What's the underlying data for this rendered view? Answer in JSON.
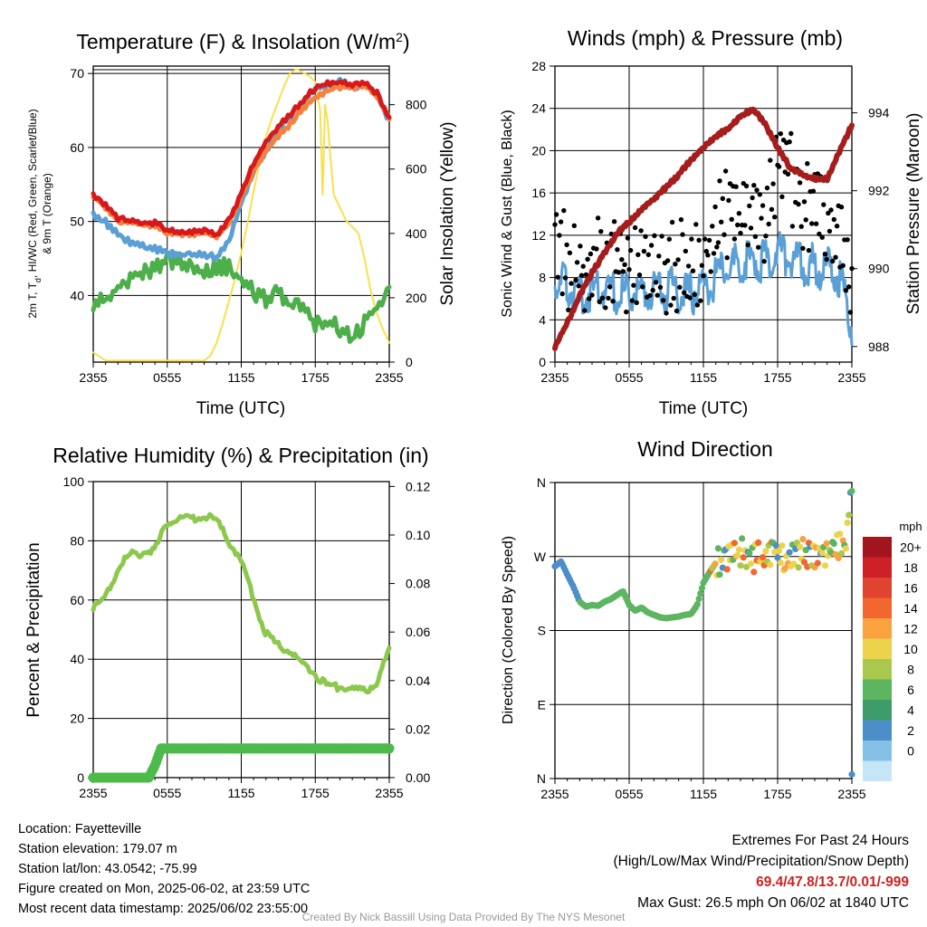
{
  "colors": {
    "red": "#d7191c",
    "orange": "#f4813c",
    "green": "#4daf4a",
    "blue": "#5aa0d6",
    "yellow": "#f9e04b",
    "maroon": "#a51d1d",
    "black": "#000000",
    "rh": "#8cc84b",
    "precip": "#4dbb4a",
    "extremes": "#cc2222",
    "credit": "#999999"
  },
  "chart_data": [
    {
      "type": "line",
      "title": "Temperature (F) & Insolation (W/m",
      "title_sup": "2",
      "title_end": ")",
      "xlabel": "Time (UTC)",
      "ylabel_line1": "2m T, T",
      "ylabel_sub": "d",
      "ylabel_line1_end": ", HI/WC (Red, Green, Scarlet/Blue)",
      "ylabel_line2": "& 9m T (Orange)",
      "ylabel_right": "Solar Insolation (Yellow)",
      "x_ticks": [
        "2355",
        "0555",
        "1155",
        "1755",
        "2355"
      ],
      "y_ticks": [
        "40",
        "50",
        "60",
        "70"
      ],
      "y_right_ticks": [
        "0",
        "200",
        "400",
        "600",
        "800"
      ],
      "ylim": [
        31,
        71
      ],
      "y_right_lim": [
        0,
        920
      ],
      "grid": true,
      "series": [
        {
          "key": "t2m",
          "color": "red",
          "x": [
            0,
            1,
            2,
            3,
            4,
            5,
            6,
            7,
            8,
            9,
            10,
            11,
            12,
            13,
            14,
            15,
            16,
            17,
            18,
            19,
            20,
            21,
            22,
            23,
            24
          ],
          "y": [
            53.7,
            52.2,
            50.4,
            50.1,
            49.9,
            49.8,
            48.9,
            48.6,
            48.6,
            48.7,
            48.2,
            50.2,
            53.8,
            57.8,
            60.7,
            62.8,
            64.5,
            66.4,
            68.1,
            68.6,
            68.9,
            68.4,
            68.7,
            67.3,
            63.8
          ]
        },
        {
          "key": "t9m",
          "color": "orange",
          "x": [
            0,
            1,
            2,
            3,
            4,
            5,
            6,
            7,
            8,
            9,
            10,
            11,
            12,
            13,
            14,
            15,
            16,
            17,
            18,
            19,
            20,
            21,
            22,
            23,
            24
          ],
          "y": [
            53.4,
            51.9,
            50.1,
            49.8,
            49.6,
            49.5,
            48.6,
            48.3,
            48.3,
            48.4,
            48.0,
            49.7,
            53.2,
            56.9,
            59.5,
            61.6,
            63.2,
            65.3,
            66.8,
            67.6,
            68.2,
            68.0,
            68.3,
            67.0,
            63.9
          ]
        },
        {
          "key": "dewpoint",
          "color": "green",
          "x": [
            0,
            1,
            2,
            3,
            4,
            5,
            6,
            7,
            8,
            9,
            10,
            11,
            12,
            13,
            14,
            15,
            16,
            17,
            18,
            19,
            20,
            21,
            22,
            23,
            24
          ],
          "y": [
            38.9,
            39.5,
            41.2,
            42.4,
            43.0,
            43.5,
            44.8,
            44.5,
            44.0,
            43.0,
            43.6,
            44.0,
            42.0,
            40.5,
            39.5,
            40.5,
            38.5,
            38.8,
            36.0,
            36.2,
            35.6,
            34.0,
            36.5,
            38.5,
            41.2
          ]
        },
        {
          "key": "hiwc",
          "color": "blue",
          "x": [
            0,
            1,
            2,
            3,
            4,
            5,
            6,
            7,
            8,
            9,
            10,
            11,
            12,
            13,
            14,
            15,
            16,
            17,
            18,
            19,
            20,
            21,
            22,
            23,
            24
          ],
          "y": [
            50.8,
            49.9,
            48.3,
            47.2,
            46.6,
            46.4,
            45.6,
            45.4,
            45.6,
            45.5,
            45.0,
            47.5,
            52.5,
            56.8,
            59.6,
            62.2,
            64.4,
            66.2,
            67.8,
            68.4,
            68.8,
            68.3,
            68.6,
            67.1,
            63.6
          ]
        },
        {
          "key": "insolation",
          "color": "yellow",
          "axis": "right",
          "x": [
            0,
            1,
            2,
            3,
            4,
            5,
            6,
            7,
            8,
            9,
            9.5,
            10,
            10.5,
            11,
            11.5,
            12,
            12.5,
            13,
            13.5,
            14,
            14.5,
            15,
            15.5,
            16,
            16.5,
            17,
            17.5,
            18,
            18.4,
            18.6,
            18.8,
            19,
            19.2,
            19.5,
            20,
            20.5,
            21,
            21.5,
            22,
            22.5,
            23,
            23.5,
            24
          ],
          "y": [
            30,
            5,
            5,
            5,
            5,
            5,
            5,
            5,
            5,
            5,
            20,
            60,
            120,
            190,
            260,
            340,
            430,
            530,
            620,
            700,
            760,
            810,
            860,
            900,
            910,
            900,
            890,
            870,
            780,
            520,
            800,
            750,
            650,
            520,
            480,
            440,
            420,
            400,
            320,
            220,
            150,
            100,
            60
          ]
        }
      ]
    },
    {
      "type": "line",
      "title": "Winds (mph) & Pressure (mb)",
      "xlabel": "Time (UTC)",
      "ylabel": "Sonic Wind & Gust (Blue, Black)",
      "ylabel_right": "Station Pressure (Maroon)",
      "x_ticks": [
        "2355",
        "0555",
        "1155",
        "1755",
        "2355"
      ],
      "y_ticks": [
        "0",
        "4",
        "8",
        "12",
        "16",
        "20",
        "24",
        "28"
      ],
      "y_right_ticks": [
        "988",
        "990",
        "992",
        "994"
      ],
      "ylim": [
        0,
        28
      ],
      "y_right_lim": [
        987.6,
        995.2
      ],
      "grid": true,
      "series": [
        {
          "key": "wind",
          "color": "blue",
          "x": [
            0,
            1,
            2,
            3,
            4,
            5,
            6,
            7,
            8,
            9,
            10,
            11,
            12,
            13,
            14,
            15,
            16,
            17,
            18,
            19,
            20,
            21,
            22,
            23,
            24
          ],
          "y": [
            7.5,
            7.2,
            6.5,
            6.8,
            7.0,
            6.5,
            6.8,
            6.6,
            6.5,
            7.0,
            6.8,
            6.5,
            7.2,
            8.0,
            9.0,
            9.2,
            9.8,
            9.5,
            10.5,
            10.0,
            9.0,
            9.2,
            8.8,
            8.0,
            3.5
          ]
        },
        {
          "key": "gust",
          "color": "black",
          "x": [
            0,
            1,
            2,
            3,
            4,
            5,
            6,
            7,
            8,
            9,
            10,
            11,
            12,
            13,
            14,
            15,
            16,
            17,
            18,
            19,
            20,
            21,
            22,
            23,
            24
          ],
          "y": [
            14.5,
            9.8,
            9.5,
            10.5,
            10.2,
            10.0,
            10.0,
            9.8,
            9.5,
            10.2,
            10.5,
            10.0,
            9.5,
            15.0,
            15.5,
            15.0,
            16.0,
            14.5,
            20.0,
            19.0,
            16.0,
            15.0,
            14.5,
            13.0,
            7.0
          ]
        },
        {
          "key": "pressure",
          "color": "maroon",
          "axis": "right",
          "x": [
            0,
            1,
            2,
            3,
            4,
            5,
            6,
            7,
            8,
            9,
            10,
            11,
            12,
            13,
            14,
            15,
            16,
            17,
            18,
            19,
            20,
            21,
            22,
            23,
            24
          ],
          "y": [
            988.0,
            988.6,
            989.3,
            989.9,
            990.4,
            990.9,
            991.2,
            991.5,
            991.8,
            992.1,
            992.4,
            992.8,
            993.1,
            993.4,
            993.6,
            993.9,
            994.1,
            993.7,
            993.1,
            992.6,
            992.4,
            992.3,
            992.3,
            993.0,
            993.7
          ]
        }
      ]
    },
    {
      "type": "line",
      "title": "Relative Humidity (%) & Precipitation (in)",
      "ylabel": "Percent & Precipitation",
      "x_ticks": [
        "2355",
        "0555",
        "1155",
        "1755",
        "2355"
      ],
      "y_ticks": [
        "0",
        "20",
        "40",
        "60",
        "80",
        "100"
      ],
      "y_right_ticks": [
        "0.00",
        "0.02",
        "0.04",
        "0.06",
        "0.08",
        "0.10",
        "0.12"
      ],
      "ylim": [
        0,
        100
      ],
      "y_right_lim": [
        0,
        0.122
      ],
      "grid": true,
      "series": [
        {
          "key": "rh",
          "color": "rh",
          "x": [
            0,
            1,
            2,
            3,
            4,
            5,
            6,
            7,
            8,
            9,
            10,
            11,
            12,
            13,
            14,
            15,
            16,
            17,
            18,
            19,
            20,
            21,
            22,
            23,
            24
          ],
          "y": [
            57.5,
            60.5,
            71.0,
            75.5,
            76.0,
            77.0,
            86.0,
            88.0,
            87.5,
            88.5,
            86.5,
            80.0,
            73.0,
            60.5,
            48.5,
            44.5,
            42.5,
            38.0,
            35.0,
            30.5,
            30.5,
            30.0,
            29.0,
            32.5,
            43.0
          ]
        },
        {
          "key": "precip",
          "color": "precip",
          "axis": "right",
          "x": [
            0,
            1,
            2,
            3,
            4,
            4.5,
            5,
            5.5,
            6,
            9,
            12,
            15,
            18,
            21,
            24
          ],
          "y": [
            0,
            0,
            0,
            0,
            0,
            0,
            0.005,
            0.012,
            0.012,
            0.012,
            0.012,
            0.012,
            0.012,
            0.012,
            0.012
          ]
        }
      ]
    },
    {
      "type": "scatter",
      "title": "Wind Direction",
      "ylabel": "Direction (Colored By Speed)",
      "x_ticks": [
        "2355",
        "0555",
        "1155",
        "1755",
        "2355"
      ],
      "y_ticks": [
        "N",
        "E",
        "S",
        "W",
        "N"
      ],
      "ylim": [
        0,
        360
      ],
      "grid": true,
      "legend_title": "mph",
      "legend_labels": [
        "20+",
        "18",
        "16",
        "14",
        "12",
        "10",
        "8",
        "6",
        "4",
        "2",
        "0"
      ],
      "legend_colors": [
        "#a1151c",
        "#cd2027",
        "#e04431",
        "#f1672f",
        "#f9a23f",
        "#ecd34c",
        "#a8c94d",
        "#5db562",
        "#3e9c6b",
        "#4b8ec8",
        "#85c0e6",
        "#c5e6f7"
      ],
      "x": [
        0,
        0.5,
        1,
        1.5,
        2,
        2.5,
        3,
        3.5,
        4,
        4.5,
        5,
        5.5,
        6,
        6.5,
        7,
        7.5,
        8,
        8.5,
        9,
        9.5,
        10,
        10.5,
        11,
        11.5,
        12,
        12.5,
        13,
        13.5,
        14,
        14.5,
        15,
        15.5,
        16,
        16.5,
        17,
        17.5,
        18,
        18.5,
        19,
        19.5,
        20,
        20.5,
        21,
        21.5,
        22,
        22.5,
        23,
        23.5,
        24
      ],
      "y": [
        258,
        264,
        248,
        233,
        215,
        209,
        211,
        210,
        215,
        218,
        223,
        228,
        211,
        204,
        208,
        202,
        199,
        196,
        195,
        196,
        197,
        199,
        200,
        211,
        238,
        251,
        262,
        265,
        273,
        278,
        276,
        270,
        268,
        270,
        268,
        280,
        278,
        266,
        263,
        272,
        276,
        272,
        268,
        278,
        270,
        282,
        286,
        290,
        350
      ]
    }
  ],
  "footer": {
    "location": "Location: Fayetteville",
    "elevation": "Station elevation: 179.07 m",
    "latlon": "Station lat/lon: 43.0542; -75.99",
    "created": "Figure created on Mon, 2025-06-02, at 23:59 UTC",
    "recent": "Most recent data timestamp: 2025/06/02 23:55:00",
    "extremes_title": "Extremes For Past 24 Hours",
    "extremes_subtitle": "(High/Low/Max Wind/Precipitation/Snow Depth)",
    "extremes_values": "69.4/47.8/13.7/0.01/-999",
    "max_gust": "Max Gust: 26.5 mph On 06/02 at 1840 UTC",
    "credit": "Created By Nick Bassill Using Data Provided By The NYS Mesonet"
  }
}
